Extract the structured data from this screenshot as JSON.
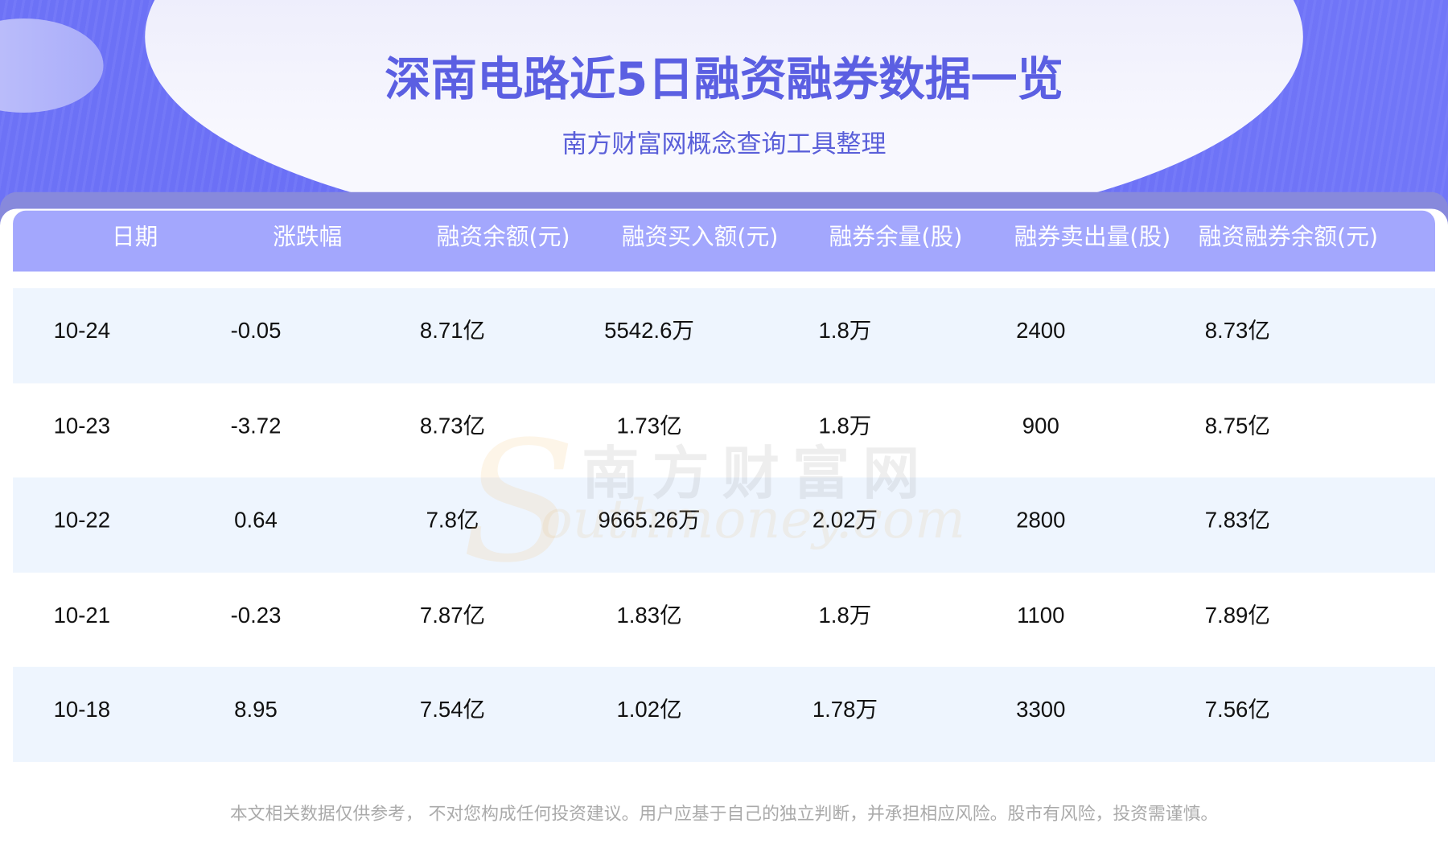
{
  "header": {
    "title": "深南电路近5日融资融券数据一览",
    "subtitle": "南方财富网概念查询工具整理"
  },
  "table": {
    "columns": [
      "日期",
      "涨跌幅",
      "融资余额(元)",
      "融资买入额(元)",
      "融券余量(股)",
      "融券卖出量(股)",
      "融资融券余额(元)"
    ],
    "rows": [
      [
        "10-24",
        "-0.05",
        "8.71亿",
        "5542.6万",
        "1.8万",
        "2400",
        "8.73亿"
      ],
      [
        "10-23",
        "-3.72",
        "8.73亿",
        "1.73亿",
        "1.8万",
        "900",
        "8.75亿"
      ],
      [
        "10-22",
        "0.64",
        "7.8亿",
        "9665.26万",
        "2.02万",
        "2800",
        "7.83亿"
      ],
      [
        "10-21",
        "-0.23",
        "7.87亿",
        "1.83亿",
        "1.8万",
        "1100",
        "7.89亿"
      ],
      [
        "10-18",
        "8.95",
        "7.54亿",
        "1.02亿",
        "1.78万",
        "3300",
        "7.56亿"
      ]
    ]
  },
  "watermark": {
    "cn": "南方财富网",
    "en": "Southmoney.com"
  },
  "footer": {
    "disclaimer": "本文相关数据仅供参考， 不对您构成任何投资建议。用户应基于自己的独立判断，并承担相应风险。股市有风险，投资需谨慎。"
  },
  "colors": {
    "accent": "#5b5fe2",
    "header_row": "#a3a7fd",
    "alt_row": "#eef5fe",
    "background": "#6a6ff5"
  }
}
